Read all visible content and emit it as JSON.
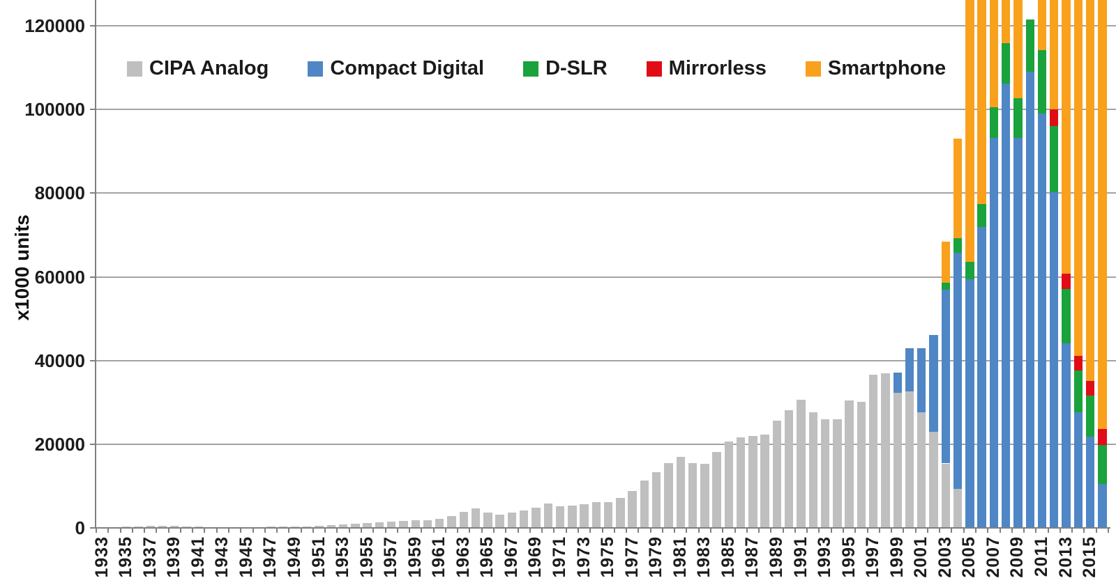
{
  "chart_data": {
    "type": "bar",
    "stacked": true,
    "title": "",
    "ylabel": "x1000 units",
    "xlabel": "",
    "ylim": [
      0,
      126200
    ],
    "yticks": [
      0,
      20000,
      40000,
      60000,
      80000,
      100000,
      120000
    ],
    "grid": "horizontal",
    "legend_position": "top-left inside plot",
    "years_start": 1933,
    "years_end": 2016,
    "xtick_labels": [
      1933,
      1935,
      1937,
      1939,
      1941,
      1943,
      1945,
      1947,
      1949,
      1951,
      1953,
      1955,
      1957,
      1959,
      1961,
      1963,
      1965,
      1967,
      1969,
      1971,
      1973,
      1975,
      1977,
      1979,
      1981,
      1983,
      1985,
      1987,
      1989,
      1991,
      1993,
      1995,
      1997,
      1999,
      2001,
      2003,
      2005,
      2007,
      2009,
      2011,
      2013,
      2015
    ],
    "note": "Values in thousands of units, estimated from pixels. Smartphone segments for 2005-2009 and 2011-2016 extend beyond the top of the plot and are clipped at the image edge; 2010 shows no smartphone segment.",
    "series": [
      {
        "name": "CIPA Analog",
        "color": "#bfbfbf",
        "start_year": 1933,
        "values": [
          150,
          200,
          250,
          350,
          450,
          500,
          450,
          400,
          300,
          200,
          100,
          80,
          60,
          200,
          250,
          300,
          350,
          400,
          500,
          600,
          800,
          1000,
          1200,
          1350,
          1500,
          1700,
          1900,
          1750,
          2100,
          2900,
          3800,
          4700,
          3600,
          3100,
          3600,
          4100,
          4900,
          5800,
          5100,
          5300,
          5700,
          6200,
          6100,
          7200,
          8900,
          11400,
          13300,
          15500,
          17000,
          15500,
          15300,
          18200,
          20600,
          21700,
          22000,
          22300,
          25700,
          28200,
          30700,
          27600,
          25900,
          25900,
          30500,
          30200,
          36700,
          37000,
          32300,
          32700,
          27600,
          22900,
          15400,
          9300
        ]
      },
      {
        "name": "Compact Digital",
        "color": "#4f86c6",
        "start_year": 1999,
        "values": [
          4800,
          10200,
          15400,
          23300,
          41500,
          56500,
          59400,
          71900,
          93300,
          106200,
          93300,
          109000,
          99100,
          80200,
          44100,
          27600,
          21800,
          10500
        ]
      },
      {
        "name": "D-SLR",
        "color": "#1aa23c",
        "start_year": 2003,
        "values": [
          1700,
          3400,
          4200,
          5600,
          7300,
          9600,
          9400,
          12500,
          15100,
          15800,
          13000,
          10000,
          9900,
          9300
        ]
      },
      {
        "name": "Mirrorless",
        "color": "#e00d16",
        "start_year": 2012,
        "values": [
          4100,
          3600,
          3600,
          3400,
          3900
        ]
      },
      {
        "name": "Smartphone",
        "color": "#f9a11c",
        "start_year": 2003,
        "values": [
          9800,
          23800,
          64400,
          50500,
          27400,
          12200,
          25400,
          0,
          13800,
          27900,
          67200,
          86800,
          92900,
          104400
        ]
      }
    ]
  },
  "colors": {
    "gridline": "#a3a3a3",
    "axis": "#808080",
    "text": "#1c1c1c",
    "background": "#ffffff"
  }
}
